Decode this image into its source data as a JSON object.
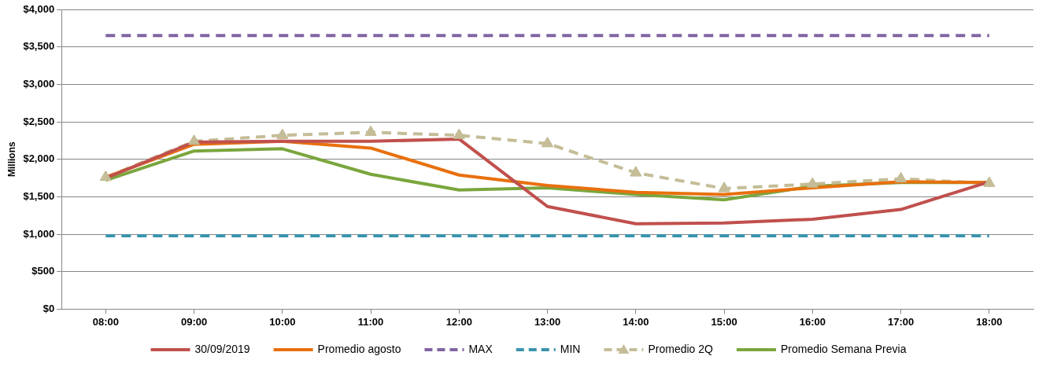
{
  "chart_data": {
    "type": "line",
    "ylabel": "Millions",
    "categories": [
      "08:00",
      "09:00",
      "10:00",
      "11:00",
      "12:00",
      "13:00",
      "14:00",
      "15:00",
      "16:00",
      "17:00",
      "18:00"
    ],
    "series": [
      {
        "name": "30/09/2019",
        "color": "#c0504d",
        "line_style": "solid",
        "marker": "none",
        "values": [
          1750,
          2230,
          2240,
          2240,
          2270,
          1370,
          1140,
          1150,
          1200,
          1330,
          1700
        ]
      },
      {
        "name": "Promedio agosto",
        "color": "#e8700e",
        "line_style": "solid",
        "marker": "none",
        "values": [
          1760,
          2200,
          2240,
          2150,
          1790,
          1650,
          1560,
          1530,
          1620,
          1700,
          1690
        ]
      },
      {
        "name": "MAX",
        "color": "#8064a2",
        "line_style": "dashed",
        "marker": "none",
        "values": [
          3650,
          3650,
          3650,
          3650,
          3650,
          3650,
          3650,
          3650,
          3650,
          3650,
          3650
        ]
      },
      {
        "name": "MIN",
        "color": "#3a94ad",
        "line_style": "dashed",
        "marker": "none",
        "values": [
          980,
          980,
          980,
          980,
          980,
          980,
          980,
          980,
          980,
          980,
          980
        ]
      },
      {
        "name": "Promedio 2Q",
        "color": "#c4bd97",
        "line_style": "dashed",
        "marker": "triangle",
        "values": [
          1760,
          2240,
          2320,
          2360,
          2320,
          2210,
          1820,
          1610,
          1670,
          1740,
          1680
        ]
      },
      {
        "name": "Promedio Semana Previa",
        "color": "#7aa63d",
        "line_style": "solid",
        "marker": "none",
        "values": [
          1720,
          2110,
          2140,
          1800,
          1590,
          1620,
          1530,
          1460,
          1640,
          1690,
          1690
        ]
      }
    ],
    "ylim": [
      0,
      4000
    ],
    "yticks": [
      {
        "value": 0,
        "label": "$0"
      },
      {
        "value": 500,
        "label": "$500"
      },
      {
        "value": 1000,
        "label": "$1,000"
      },
      {
        "value": 1500,
        "label": "$1,500"
      },
      {
        "value": 2000,
        "label": "$2,000"
      },
      {
        "value": 2500,
        "label": "$2,500"
      },
      {
        "value": 3000,
        "label": "$3,000"
      },
      {
        "value": 3500,
        "label": "$3,500"
      },
      {
        "value": 4000,
        "label": "$4,000"
      }
    ],
    "grid": "y",
    "legend": "bottom"
  }
}
